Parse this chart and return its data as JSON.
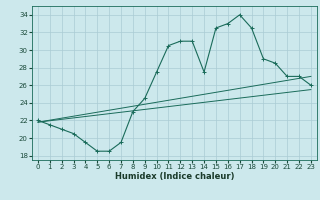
{
  "title": "",
  "xlabel": "Humidex (Indice chaleur)",
  "ylabel": "",
  "background_color": "#cce8ec",
  "grid_color": "#aaccd4",
  "line_color": "#1a6b5a",
  "xlim": [
    -0.5,
    23.5
  ],
  "ylim": [
    17.5,
    35.0
  ],
  "xticks": [
    0,
    1,
    2,
    3,
    4,
    5,
    6,
    7,
    8,
    9,
    10,
    11,
    12,
    13,
    14,
    15,
    16,
    17,
    18,
    19,
    20,
    21,
    22,
    23
  ],
  "yticks": [
    18,
    20,
    22,
    24,
    26,
    28,
    30,
    32,
    34
  ],
  "main_line_x": [
    0,
    1,
    2,
    3,
    4,
    5,
    6,
    7,
    8,
    9,
    10,
    11,
    12,
    13,
    14,
    15,
    16,
    17,
    18,
    19,
    20,
    21,
    22,
    23
  ],
  "main_line_y": [
    22,
    21.5,
    21,
    20.5,
    19.5,
    18.5,
    18.5,
    19.5,
    23,
    24.5,
    27.5,
    30.5,
    31,
    31,
    27.5,
    32.5,
    33,
    34,
    32.5,
    29,
    28.5,
    27,
    27,
    26
  ],
  "line2_x": [
    0,
    23
  ],
  "line2_y": [
    21.8,
    25.5
  ],
  "line3_x": [
    0,
    23
  ],
  "line3_y": [
    21.8,
    27.0
  ],
  "xlabel_fontsize": 6.0,
  "tick_fontsize": 5.0
}
